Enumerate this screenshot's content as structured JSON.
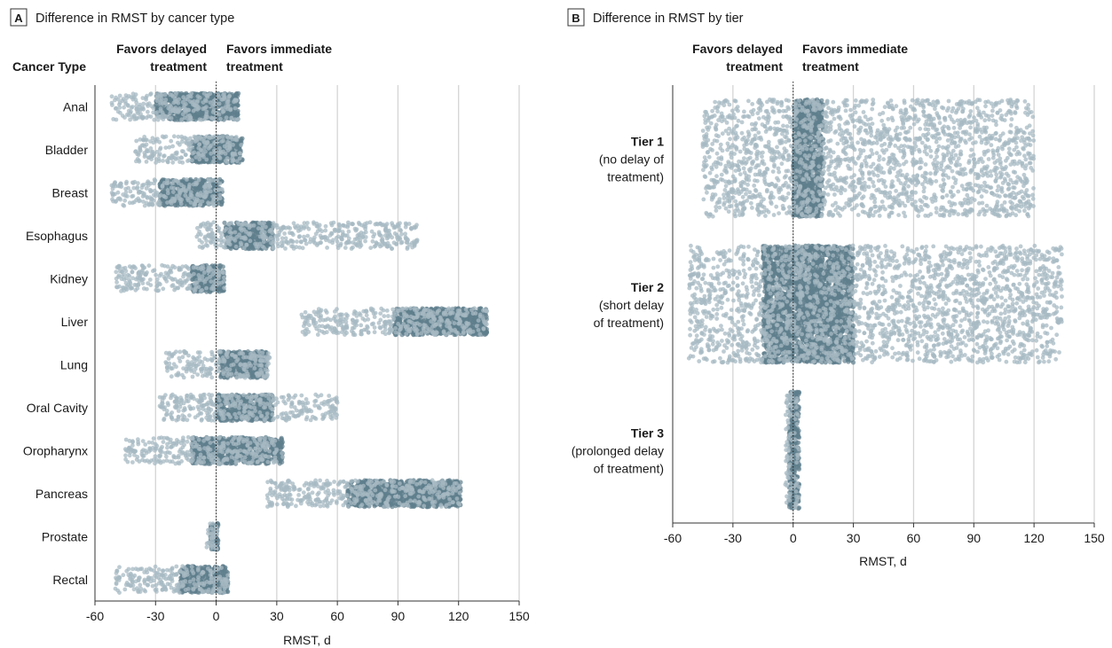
{
  "colors": {
    "dot": "#5f7f8d",
    "dot_light": "#a7bac3",
    "grid": "#d4d4d4",
    "axis": "#333333",
    "text": "#1a1a1a",
    "zero_line": "#222222"
  },
  "chart_data": [
    {
      "panel_letter": "A",
      "type": "scatter",
      "title": "Difference in RMST by cancer type",
      "category_axis_title": "Cancer Type",
      "xlabel": "RMST, d",
      "xlim": [
        -60,
        150
      ],
      "xticks": [
        -60,
        -30,
        0,
        30,
        60,
        90,
        120,
        150
      ],
      "grid": true,
      "reference_line_x": 0,
      "favors_left": [
        "Favors delayed",
        "treatment"
      ],
      "favors_right": [
        "Favors immediate",
        "treatment"
      ],
      "categories": [
        "Anal",
        "Bladder",
        "Breast",
        "Esophagus",
        "Kidney",
        "Liver",
        "Lung",
        "Oral Cavity",
        "Oropharynx",
        "Pancreas",
        "Prostate",
        "Rectal"
      ],
      "distributions": [
        {
          "category": "Anal",
          "dense_range": [
            -30,
            11
          ],
          "sparse_range": [
            -52,
            11
          ]
        },
        {
          "category": "Bladder",
          "dense_range": [
            -12,
            13
          ],
          "sparse_range": [
            -40,
            13
          ]
        },
        {
          "category": "Breast",
          "dense_range": [
            -28,
            3
          ],
          "sparse_range": [
            -52,
            3
          ]
        },
        {
          "category": "Esophagus",
          "dense_range": [
            4,
            28
          ],
          "sparse_range": [
            -10,
            100
          ]
        },
        {
          "category": "Kidney",
          "dense_range": [
            -12,
            4
          ],
          "sparse_range": [
            -50,
            4
          ]
        },
        {
          "category": "Liver",
          "dense_range": [
            88,
            134
          ],
          "sparse_range": [
            42,
            134
          ]
        },
        {
          "category": "Lung",
          "dense_range": [
            2,
            25
          ],
          "sparse_range": [
            -25,
            27
          ]
        },
        {
          "category": "Oral Cavity",
          "dense_range": [
            0,
            28
          ],
          "sparse_range": [
            -28,
            60
          ]
        },
        {
          "category": "Oropharynx",
          "dense_range": [
            -12,
            33
          ],
          "sparse_range": [
            -45,
            33
          ]
        },
        {
          "category": "Pancreas",
          "dense_range": [
            65,
            121
          ],
          "sparse_range": [
            25,
            121
          ]
        },
        {
          "category": "Prostate",
          "dense_range": [
            -3,
            1
          ],
          "sparse_range": [
            -5,
            1
          ]
        },
        {
          "category": "Rectal",
          "dense_range": [
            -18,
            6
          ],
          "sparse_range": [
            -50,
            6
          ]
        }
      ]
    },
    {
      "panel_letter": "B",
      "type": "scatter",
      "title": "Difference in RMST by tier",
      "xlabel": "RMST, d",
      "xlim": [
        -60,
        150
      ],
      "xticks": [
        -60,
        -30,
        0,
        30,
        60,
        90,
        120,
        150
      ],
      "grid": true,
      "reference_line_x": 0,
      "favors_left": [
        "Favors delayed",
        "treatment"
      ],
      "favors_right": [
        "Favors immediate",
        "treatment"
      ],
      "categories": [
        {
          "name": "Tier 1",
          "desc": [
            "(no delay of",
            "treatment)"
          ]
        },
        {
          "name": "Tier 2",
          "desc": [
            "(short delay",
            "of treatment)"
          ]
        },
        {
          "name": "Tier 3",
          "desc": [
            "(prolonged delay",
            "of treatment)"
          ]
        }
      ],
      "distributions": [
        {
          "category": "Tier 1",
          "dense_range": [
            0,
            15
          ],
          "sparse_range": [
            -45,
            120
          ]
        },
        {
          "category": "Tier 2",
          "dense_range": [
            -15,
            30
          ],
          "sparse_range": [
            -52,
            134
          ]
        },
        {
          "category": "Tier 3",
          "dense_range": [
            -2,
            3
          ],
          "sparse_range": [
            -4,
            3
          ]
        }
      ]
    }
  ]
}
